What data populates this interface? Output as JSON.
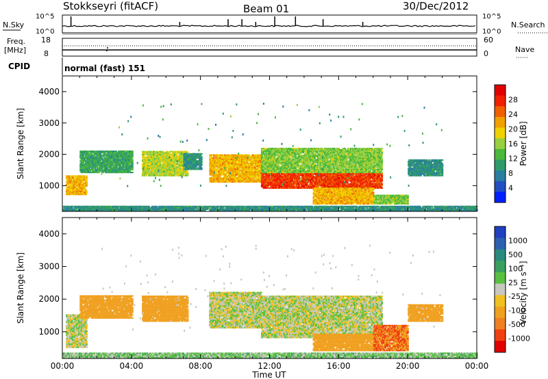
{
  "header": {
    "station": "Stokkseyri (fitACF)",
    "beam": "Beam 01",
    "date": "30/Dec/2012"
  },
  "strip": {
    "nsky_label": "N.Sky",
    "nsky_ticks": [
      "10^5",
      "10^0"
    ],
    "nsearch_label": "N.Search",
    "nsearch_ticks": [
      "10^5",
      "10^0"
    ],
    "freq_label_line1": "Freq.",
    "freq_label_line2": "[MHz]",
    "freq_ticks": [
      "18",
      "8"
    ],
    "nave_label": "Nave",
    "nave_ticks": [
      "60",
      "0"
    ],
    "cpid_label": "CPID",
    "cpid_text": "normal (fast) 151"
  },
  "axes": {
    "ylabel": "Slant Range [km]",
    "xlabel": "Time UT",
    "yticks": [
      "1000",
      "2000",
      "3000",
      "4000"
    ],
    "xticks": [
      "00:00",
      "04:00",
      "08:00",
      "12:00",
      "16:00",
      "20:00",
      "00:00"
    ]
  },
  "colorbars": {
    "power": {
      "label": "Power [dB]",
      "ticks": [
        "4",
        "8",
        "12",
        "16",
        "20",
        "24",
        "28"
      ],
      "colors": [
        "#0020ff",
        "#2050c0",
        "#2a7fa0",
        "#2e9a6a",
        "#49b83c",
        "#98d040",
        "#f0d000",
        "#f0a000",
        "#f06000",
        "#f02000",
        "#e00000"
      ]
    },
    "velocity": {
      "label": "Velocity [m s⁻¹]",
      "ticks": [
        "1000",
        "500",
        "100",
        "25",
        "-25",
        "-100",
        "-500",
        "-1000"
      ],
      "colors": [
        "#2040c0",
        "#2e60b0",
        "#2a8a80",
        "#3aa060",
        "#58c040",
        "#c8c8c0",
        "#f0c020",
        "#f0a020",
        "#f08020",
        "#f04010",
        "#e00000"
      ]
    }
  },
  "chart_data": [
    {
      "type": "heatmap",
      "name": "Power",
      "x_range_hours": [
        0,
        24
      ],
      "y_range_km": [
        180,
        4500
      ],
      "bands": [
        {
          "t0": 0.2,
          "t1": 1.4,
          "r0": 700,
          "r1": 1300,
          "level": 20
        },
        {
          "t0": 1.0,
          "t1": 4.0,
          "r0": 1400,
          "r1": 2100,
          "level": 10
        },
        {
          "t0": 4.6,
          "t1": 7.2,
          "r0": 1300,
          "r1": 2100,
          "level": 16
        },
        {
          "t0": 7.0,
          "t1": 8.0,
          "r0": 1500,
          "r1": 2000,
          "level": 8
        },
        {
          "t0": 8.5,
          "t1": 11.5,
          "r0": 1100,
          "r1": 2000,
          "level": 20
        },
        {
          "t0": 11.5,
          "t1": 18.5,
          "r0": 900,
          "r1": 1400,
          "level": 26
        },
        {
          "t0": 11.5,
          "t1": 18.5,
          "r0": 1400,
          "r1": 2200,
          "level": 14
        },
        {
          "t0": 14.5,
          "t1": 18.0,
          "r0": 400,
          "r1": 900,
          "level": 20
        },
        {
          "t0": 18.0,
          "t1": 20.0,
          "r0": 400,
          "r1": 700,
          "level": 14
        },
        {
          "t0": 20.0,
          "t1": 22.0,
          "r0": 1300,
          "r1": 1800,
          "level": 8
        },
        {
          "t0": 0.0,
          "t1": 24.0,
          "r0": 180,
          "r1": 350,
          "level": 8
        }
      ]
    },
    {
      "type": "heatmap",
      "name": "Velocity",
      "x_range_hours": [
        0,
        24
      ],
      "y_range_km": [
        180,
        4500
      ],
      "bands": [
        {
          "t0": 0.2,
          "t1": 1.4,
          "r0": 500,
          "r1": 1500,
          "level": 0
        },
        {
          "t0": 1.0,
          "t1": 4.0,
          "r0": 1400,
          "r1": 2100,
          "level": -300
        },
        {
          "t0": 4.6,
          "t1": 7.2,
          "r0": 1300,
          "r1": 2100,
          "level": -200
        },
        {
          "t0": 8.5,
          "t1": 11.5,
          "r0": 1100,
          "r1": 2200,
          "level": 0
        },
        {
          "t0": 11.5,
          "t1": 18.5,
          "r0": 800,
          "r1": 2100,
          "level": 0
        },
        {
          "t0": 14.5,
          "t1": 18.0,
          "r0": 400,
          "r1": 900,
          "level": -300
        },
        {
          "t0": 18.0,
          "t1": 20.0,
          "r0": 400,
          "r1": 1200,
          "level": -500
        },
        {
          "t0": 20.0,
          "t1": 22.0,
          "r0": 1300,
          "r1": 1800,
          "level": -200
        },
        {
          "t0": 0.0,
          "t1": 24.0,
          "r0": 180,
          "r1": 350,
          "level": 50
        }
      ]
    }
  ]
}
